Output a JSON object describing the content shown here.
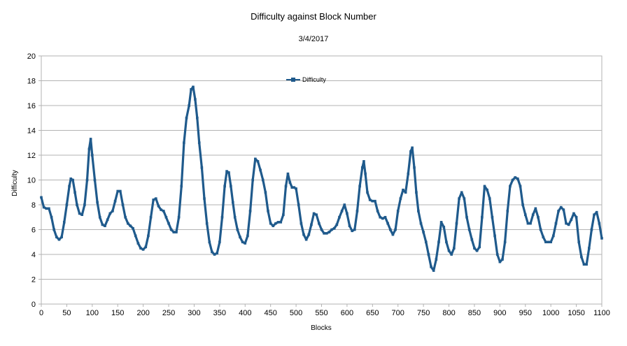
{
  "chart_data": {
    "type": "line",
    "title": "Difficulty against Block Number",
    "subtitle": "3/4/2017",
    "xlabel": "Blocks",
    "ylabel": "Difficulty",
    "xlim": [
      0,
      1100
    ],
    "ylim": [
      0,
      20
    ],
    "xticks": [
      0,
      50,
      100,
      150,
      200,
      250,
      300,
      350,
      400,
      450,
      500,
      550,
      600,
      650,
      700,
      750,
      800,
      850,
      900,
      950,
      1000,
      1050,
      1100
    ],
    "yticks": [
      0,
      2,
      4,
      6,
      8,
      10,
      12,
      14,
      16,
      18,
      20
    ],
    "grid": "horizontal",
    "legend_position": "top-center",
    "series_color": "#1f5a8c",
    "series": [
      {
        "name": "Difficulty",
        "points": [
          [
            0,
            8.6
          ],
          [
            5,
            7.8
          ],
          [
            10,
            7.7
          ],
          [
            15,
            7.7
          ],
          [
            20,
            7.0
          ],
          [
            25,
            6.0
          ],
          [
            30,
            5.4
          ],
          [
            35,
            5.2
          ],
          [
            40,
            5.4
          ],
          [
            45,
            6.6
          ],
          [
            50,
            8.0
          ],
          [
            55,
            9.5
          ],
          [
            58,
            10.1
          ],
          [
            62,
            10.0
          ],
          [
            66,
            9.0
          ],
          [
            70,
            8.0
          ],
          [
            75,
            7.3
          ],
          [
            80,
            7.2
          ],
          [
            85,
            8.0
          ],
          [
            90,
            10.0
          ],
          [
            94,
            12.5
          ],
          [
            97,
            13.3
          ],
          [
            100,
            12.0
          ],
          [
            105,
            10.0
          ],
          [
            110,
            8.2
          ],
          [
            115,
            7.0
          ],
          [
            120,
            6.4
          ],
          [
            125,
            6.3
          ],
          [
            130,
            6.8
          ],
          [
            135,
            7.3
          ],
          [
            140,
            7.5
          ],
          [
            145,
            8.3
          ],
          [
            150,
            9.1
          ],
          [
            155,
            9.1
          ],
          [
            160,
            8.0
          ],
          [
            165,
            7.0
          ],
          [
            170,
            6.5
          ],
          [
            175,
            6.3
          ],
          [
            180,
            6.1
          ],
          [
            185,
            5.5
          ],
          [
            190,
            4.9
          ],
          [
            195,
            4.5
          ],
          [
            200,
            4.4
          ],
          [
            205,
            4.6
          ],
          [
            210,
            5.5
          ],
          [
            215,
            7.0
          ],
          [
            220,
            8.4
          ],
          [
            225,
            8.5
          ],
          [
            230,
            7.9
          ],
          [
            235,
            7.6
          ],
          [
            240,
            7.5
          ],
          [
            245,
            7.0
          ],
          [
            250,
            6.5
          ],
          [
            255,
            6.0
          ],
          [
            260,
            5.8
          ],
          [
            265,
            5.8
          ],
          [
            270,
            7.0
          ],
          [
            275,
            9.5
          ],
          [
            280,
            13.0
          ],
          [
            285,
            15.0
          ],
          [
            290,
            16.0
          ],
          [
            294,
            17.3
          ],
          [
            298,
            17.5
          ],
          [
            302,
            16.5
          ],
          [
            306,
            15.0
          ],
          [
            310,
            13.0
          ],
          [
            315,
            11.0
          ],
          [
            320,
            8.5
          ],
          [
            325,
            6.5
          ],
          [
            330,
            5.0
          ],
          [
            335,
            4.2
          ],
          [
            340,
            4.0
          ],
          [
            345,
            4.1
          ],
          [
            350,
            5.0
          ],
          [
            355,
            7.0
          ],
          [
            360,
            9.5
          ],
          [
            364,
            10.7
          ],
          [
            368,
            10.6
          ],
          [
            372,
            9.5
          ],
          [
            376,
            8.2
          ],
          [
            380,
            7.0
          ],
          [
            385,
            6.0
          ],
          [
            390,
            5.4
          ],
          [
            395,
            5.0
          ],
          [
            400,
            4.9
          ],
          [
            405,
            5.5
          ],
          [
            410,
            7.5
          ],
          [
            415,
            10.0
          ],
          [
            420,
            11.7
          ],
          [
            425,
            11.5
          ],
          [
            430,
            10.8
          ],
          [
            435,
            10.0
          ],
          [
            440,
            9.0
          ],
          [
            445,
            7.5
          ],
          [
            450,
            6.5
          ],
          [
            455,
            6.3
          ],
          [
            460,
            6.5
          ],
          [
            465,
            6.6
          ],
          [
            470,
            6.6
          ],
          [
            475,
            7.2
          ],
          [
            480,
            9.5
          ],
          [
            484,
            10.5
          ],
          [
            488,
            9.8
          ],
          [
            492,
            9.4
          ],
          [
            496,
            9.4
          ],
          [
            500,
            9.3
          ],
          [
            505,
            8.0
          ],
          [
            510,
            6.5
          ],
          [
            515,
            5.6
          ],
          [
            520,
            5.2
          ],
          [
            525,
            5.6
          ],
          [
            530,
            6.4
          ],
          [
            535,
            7.3
          ],
          [
            540,
            7.2
          ],
          [
            545,
            6.5
          ],
          [
            550,
            6.0
          ],
          [
            555,
            5.7
          ],
          [
            560,
            5.7
          ],
          [
            565,
            5.8
          ],
          [
            570,
            6.0
          ],
          [
            575,
            6.1
          ],
          [
            580,
            6.4
          ],
          [
            585,
            7.0
          ],
          [
            590,
            7.5
          ],
          [
            595,
            8.0
          ],
          [
            600,
            7.3
          ],
          [
            605,
            6.3
          ],
          [
            610,
            5.9
          ],
          [
            615,
            6.0
          ],
          [
            620,
            7.5
          ],
          [
            625,
            9.5
          ],
          [
            630,
            11.0
          ],
          [
            633,
            11.5
          ],
          [
            636,
            10.5
          ],
          [
            640,
            9.0
          ],
          [
            645,
            8.4
          ],
          [
            650,
            8.3
          ],
          [
            655,
            8.3
          ],
          [
            660,
            7.5
          ],
          [
            665,
            7.0
          ],
          [
            670,
            6.9
          ],
          [
            675,
            7.0
          ],
          [
            680,
            6.5
          ],
          [
            685,
            6.0
          ],
          [
            690,
            5.6
          ],
          [
            695,
            6.0
          ],
          [
            700,
            7.5
          ],
          [
            705,
            8.5
          ],
          [
            710,
            9.2
          ],
          [
            715,
            9.0
          ],
          [
            720,
            10.5
          ],
          [
            725,
            12.3
          ],
          [
            728,
            12.6
          ],
          [
            732,
            11.0
          ],
          [
            736,
            9.0
          ],
          [
            740,
            7.5
          ],
          [
            745,
            6.5
          ],
          [
            750,
            5.8
          ],
          [
            755,
            5.0
          ],
          [
            760,
            4.0
          ],
          [
            765,
            3.0
          ],
          [
            770,
            2.7
          ],
          [
            775,
            3.6
          ],
          [
            780,
            5.0
          ],
          [
            785,
            6.6
          ],
          [
            790,
            6.2
          ],
          [
            795,
            5.0
          ],
          [
            800,
            4.3
          ],
          [
            805,
            4.0
          ],
          [
            810,
            4.5
          ],
          [
            815,
            6.5
          ],
          [
            820,
            8.5
          ],
          [
            825,
            9.0
          ],
          [
            830,
            8.5
          ],
          [
            835,
            7.0
          ],
          [
            840,
            6.0
          ],
          [
            845,
            5.2
          ],
          [
            850,
            4.5
          ],
          [
            855,
            4.3
          ],
          [
            860,
            4.6
          ],
          [
            865,
            7.0
          ],
          [
            870,
            9.5
          ],
          [
            875,
            9.2
          ],
          [
            880,
            8.5
          ],
          [
            885,
            7.0
          ],
          [
            890,
            5.5
          ],
          [
            895,
            4.0
          ],
          [
            900,
            3.4
          ],
          [
            905,
            3.6
          ],
          [
            910,
            5.0
          ],
          [
            915,
            7.5
          ],
          [
            920,
            9.5
          ],
          [
            925,
            10.0
          ],
          [
            930,
            10.2
          ],
          [
            935,
            10.1
          ],
          [
            940,
            9.5
          ],
          [
            945,
            8.0
          ],
          [
            950,
            7.2
          ],
          [
            955,
            6.5
          ],
          [
            960,
            6.5
          ],
          [
            965,
            7.2
          ],
          [
            970,
            7.7
          ],
          [
            975,
            7.0
          ],
          [
            980,
            6.0
          ],
          [
            985,
            5.4
          ],
          [
            990,
            5.0
          ],
          [
            995,
            5.0
          ],
          [
            1000,
            5.0
          ],
          [
            1005,
            5.5
          ],
          [
            1010,
            6.5
          ],
          [
            1015,
            7.5
          ],
          [
            1020,
            7.8
          ],
          [
            1025,
            7.6
          ],
          [
            1030,
            6.5
          ],
          [
            1035,
            6.4
          ],
          [
            1040,
            6.8
          ],
          [
            1045,
            7.3
          ],
          [
            1050,
            7.0
          ],
          [
            1055,
            5.0
          ],
          [
            1060,
            3.8
          ],
          [
            1065,
            3.2
          ],
          [
            1070,
            3.2
          ],
          [
            1075,
            4.5
          ],
          [
            1080,
            6.0
          ],
          [
            1085,
            7.2
          ],
          [
            1090,
            7.4
          ],
          [
            1095,
            6.5
          ],
          [
            1100,
            5.3
          ]
        ]
      }
    ]
  }
}
